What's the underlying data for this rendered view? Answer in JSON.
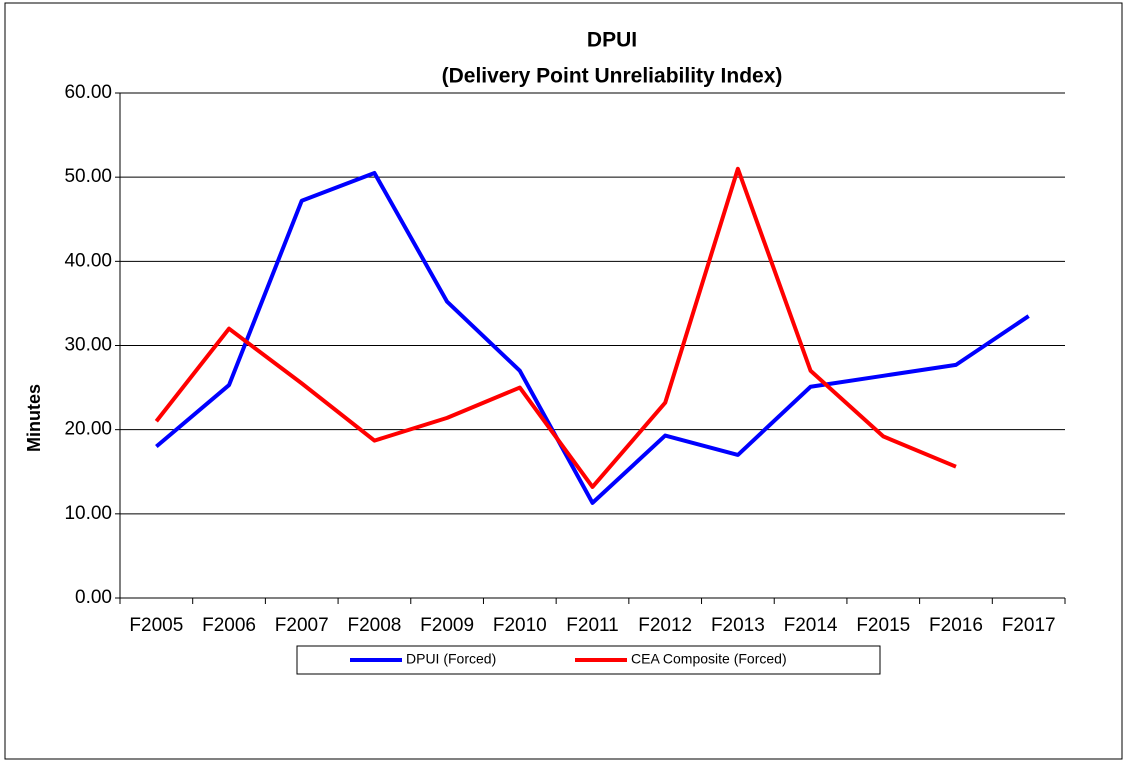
{
  "chart_data": {
    "type": "line",
    "title": "DPUI",
    "subtitle": "(Delivery Point Unreliability Index)",
    "y_label": "Minutes",
    "categories": [
      "F2005",
      "F2006",
      "F2007",
      "F2008",
      "F2009",
      "F2010",
      "F2011",
      "F2012",
      "F2013",
      "F2014",
      "F2015",
      "F2016",
      "F2017"
    ],
    "series": [
      {
        "name": "DPUI (Forced)",
        "color": "#0000ff",
        "values": [
          18.0,
          25.3,
          47.2,
          50.5,
          35.2,
          27.0,
          11.3,
          19.3,
          17.0,
          25.1,
          26.4,
          27.7,
          33.5
        ]
      },
      {
        "name": "CEA Composite (Forced)",
        "color": "#ff0000",
        "values": [
          21.0,
          32.0,
          25.5,
          18.7,
          21.4,
          25.0,
          13.2,
          23.2,
          51.0,
          27.0,
          19.2,
          15.6,
          null
        ]
      }
    ],
    "ylim": [
      0,
      60
    ],
    "yticks": [
      {
        "value": 0,
        "label": "0.00"
      },
      {
        "value": 10,
        "label": "10.00"
      },
      {
        "value": 20,
        "label": "20.00"
      },
      {
        "value": 30,
        "label": "30.00"
      },
      {
        "value": 40,
        "label": "40.00"
      },
      {
        "value": 50,
        "label": "50.00"
      },
      {
        "value": 60,
        "label": "60.00"
      }
    ],
    "grid": true,
    "legend": "bottom"
  }
}
